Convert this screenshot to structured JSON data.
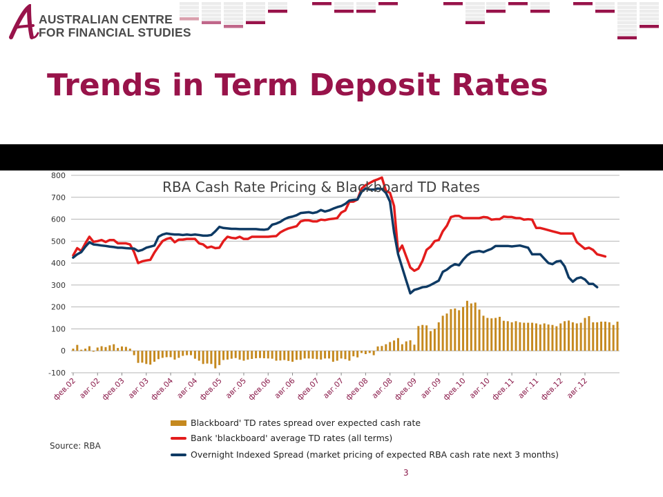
{
  "logo": {
    "line1": "AUSTRALIAN CENTRE",
    "line2": "FOR FINANCIAL STUDIES"
  },
  "slide": {
    "title": "Trends in Term Deposit Rates",
    "source": "Source: RBA",
    "page_number": "3"
  },
  "colors": {
    "accent": "#98134a",
    "bars": "#c5891f",
    "td_line": "#e31c1c",
    "ois_line": "#0e3a64"
  },
  "chart_data": {
    "type": "bar+line",
    "title": "RBA Cash Rate Pricing & Blackboard TD Rates",
    "xlabel": "",
    "ylabel": "",
    "ylim": [
      -100,
      800
    ],
    "yticks": [
      "800",
      "700",
      "600",
      "500",
      "400",
      "300",
      "200",
      "100",
      "0",
      "-100"
    ],
    "grid": true,
    "legend_position": "bottom",
    "x_tick_labels": [
      "фев.02",
      "авг.02",
      "фев.03",
      "авг.03",
      "фев.04",
      "авг.04",
      "фев.05",
      "авг.05",
      "фев.06",
      "авг.06",
      "фев.07",
      "авг.07",
      "фев.08",
      "авг.08",
      "фев.09",
      "авг.09",
      "фев.10",
      "авг.10",
      "фев.11",
      "авг.11",
      "фев.12",
      "авг.12"
    ],
    "series": [
      {
        "name": "Blackboard' TD rates spread over expected cash rate",
        "type": "bar",
        "values": [
          10,
          27,
          5,
          10,
          21,
          -4,
          15,
          21,
          17,
          25,
          30,
          13,
          20,
          18,
          10,
          -20,
          -55,
          -54,
          -60,
          -63,
          -50,
          -38,
          -32,
          -29,
          -29,
          -40,
          -32,
          -23,
          -20,
          -20,
          -36,
          -45,
          -60,
          -58,
          -60,
          -80,
          -65,
          -42,
          -40,
          -36,
          -33,
          -40,
          -45,
          -40,
          -37,
          -34,
          -33,
          -34,
          -35,
          -36,
          -45,
          -44,
          -42,
          -46,
          -50,
          -41,
          -41,
          -35,
          -35,
          -36,
          -38,
          -40,
          -35,
          -35,
          -50,
          -45,
          -35,
          -38,
          -45,
          -25,
          -30,
          -10,
          -15,
          -10,
          -20,
          20,
          22,
          30,
          40,
          47,
          58,
          30,
          43,
          48,
          28,
          113,
          118,
          116,
          90,
          100,
          130,
          160,
          170,
          190,
          193,
          185,
          200,
          228,
          216,
          220,
          188,
          160,
          150,
          148,
          150,
          155,
          137,
          135,
          130,
          135,
          130,
          128,
          128,
          128,
          125,
          120,
          125,
          120,
          118,
          112,
          125,
          135,
          138,
          130,
          125,
          128,
          150,
          158,
          130,
          130,
          133,
          133,
          130,
          118,
          133
        ]
      },
      {
        "name": "Bank 'blackboard' average TD rates (all terms)",
        "type": "line",
        "values": [
          435,
          468,
          455,
          490,
          520,
          497,
          500,
          505,
          496,
          505,
          505,
          490,
          490,
          490,
          485,
          450,
          400,
          408,
          412,
          415,
          448,
          475,
          500,
          510,
          515,
          495,
          507,
          507,
          510,
          510,
          510,
          490,
          485,
          470,
          475,
          468,
          470,
          500,
          520,
          515,
          513,
          520,
          510,
          510,
          520,
          520,
          520,
          520,
          520,
          522,
          523,
          540,
          550,
          558,
          563,
          568,
          590,
          595,
          595,
          590,
          590,
          598,
          596,
          600,
          602,
          605,
          630,
          640,
          680,
          680,
          690,
          740,
          755,
          765,
          775,
          782,
          790,
          730,
          720,
          660,
          450,
          480,
          430,
          380,
          365,
          375,
          410,
          460,
          475,
          500,
          505,
          545,
          570,
          610,
          615,
          615,
          605,
          605,
          605,
          605,
          605,
          610,
          608,
          598,
          600,
          600,
          612,
          610,
          610,
          605,
          605,
          598,
          600,
          598,
          560,
          560,
          555,
          550,
          545,
          540,
          535,
          535,
          535,
          535,
          495,
          480,
          465,
          470,
          460,
          440,
          435,
          430
        ]
      },
      {
        "name": "Overnight Indexed Spread (market pricing of expected RBA cash rate next 3 months)",
        "type": "line",
        "values": [
          425,
          440,
          450,
          475,
          495,
          485,
          483,
          480,
          478,
          475,
          473,
          470,
          470,
          468,
          467,
          466,
          455,
          460,
          470,
          475,
          480,
          520,
          530,
          535,
          532,
          530,
          530,
          528,
          530,
          528,
          530,
          528,
          525,
          525,
          528,
          545,
          565,
          560,
          558,
          556,
          556,
          555,
          555,
          555,
          555,
          555,
          553,
          552,
          555,
          575,
          580,
          588,
          600,
          608,
          612,
          618,
          628,
          630,
          632,
          628,
          632,
          642,
          635,
          640,
          648,
          655,
          660,
          670,
          685,
          688,
          690,
          725,
          740,
          735,
          735,
          740,
          738,
          720,
          680,
          540,
          440,
          380,
          320,
          262,
          278,
          283,
          290,
          292,
          300,
          310,
          320,
          360,
          370,
          385,
          395,
          390,
          415,
          435,
          448,
          452,
          455,
          450,
          458,
          465,
          478,
          478,
          478,
          478,
          476,
          478,
          480,
          475,
          470,
          440,
          440,
          440,
          420,
          400,
          395,
          407,
          410,
          385,
          335,
          315,
          330,
          335,
          325,
          305,
          305,
          290
        ]
      }
    ]
  }
}
